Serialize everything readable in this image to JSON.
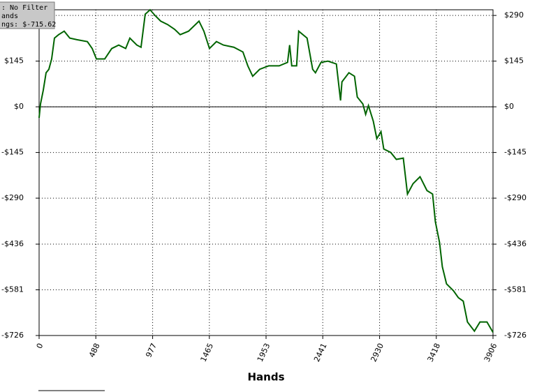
{
  "chart_data": {
    "type": "line",
    "x_label": "Hands",
    "annotations": [
      ": No Filter",
      "ands",
      "ngs: $-715.62"
    ],
    "x": [
      0,
      12,
      36,
      60,
      84,
      108,
      132,
      168,
      216,
      264,
      325,
      415,
      457,
      493,
      565,
      625,
      685,
      745,
      781,
      841,
      877,
      913,
      955,
      997,
      1046,
      1106,
      1166,
      1214,
      1286,
      1376,
      1418,
      1466,
      1526,
      1586,
      1676,
      1754,
      1796,
      1838,
      1898,
      1976,
      2066,
      2138,
      2156,
      2174,
      2216,
      2234,
      2306,
      2354,
      2378,
      2426,
      2486,
      2558,
      2594,
      2606,
      2666,
      2714,
      2738,
      2786,
      2810,
      2834,
      2876,
      2906,
      2942,
      2966,
      3026,
      3074,
      3134,
      3170,
      3218,
      3278,
      3338,
      3386,
      3410,
      3446,
      3470,
      3506,
      3566,
      3608,
      3650,
      3686,
      3746,
      3794,
      3854,
      3906
    ],
    "series": [
      {
        "color": "#006400",
        "values": [
          -35,
          9,
          53,
          108,
          119,
          152,
          218,
          229,
          240,
          218,
          213,
          207,
          185,
          152,
          152,
          185,
          196,
          185,
          218,
          196,
          189,
          294,
          308,
          290,
          272,
          261,
          246,
          229,
          240,
          272,
          240,
          185,
          207,
          196,
          189,
          174,
          130,
          97,
          119,
          130,
          130,
          141,
          196,
          130,
          130,
          240,
          218,
          119,
          108,
          141,
          145,
          136,
          20,
          79,
          108,
          97,
          31,
          9,
          -24,
          4,
          -46,
          -101,
          -79,
          -134,
          -145,
          -167,
          -163,
          -277,
          -244,
          -222,
          -266,
          -277,
          -365,
          -431,
          -508,
          -562,
          -584,
          -606,
          -617,
          -683,
          -712,
          -683,
          -683,
          -716
        ]
      }
    ],
    "xlim": [
      0,
      3906
    ],
    "xticks": [
      0,
      488,
      977,
      1465,
      1953,
      2441,
      2930,
      3418,
      3906
    ],
    "ylim": [
      -726,
      308
    ],
    "yticks": [
      {
        "value": 290,
        "label": "$290"
      },
      {
        "value": 145,
        "label": "$145"
      },
      {
        "value": 0,
        "label": "$0"
      },
      {
        "value": -145,
        "label": "-$145"
      },
      {
        "value": -290,
        "label": "-$290"
      },
      {
        "value": -436,
        "label": "-$436"
      },
      {
        "value": -581,
        "label": "-$581"
      },
      {
        "value": -726,
        "label": "-$726"
      }
    ],
    "grid": true
  }
}
